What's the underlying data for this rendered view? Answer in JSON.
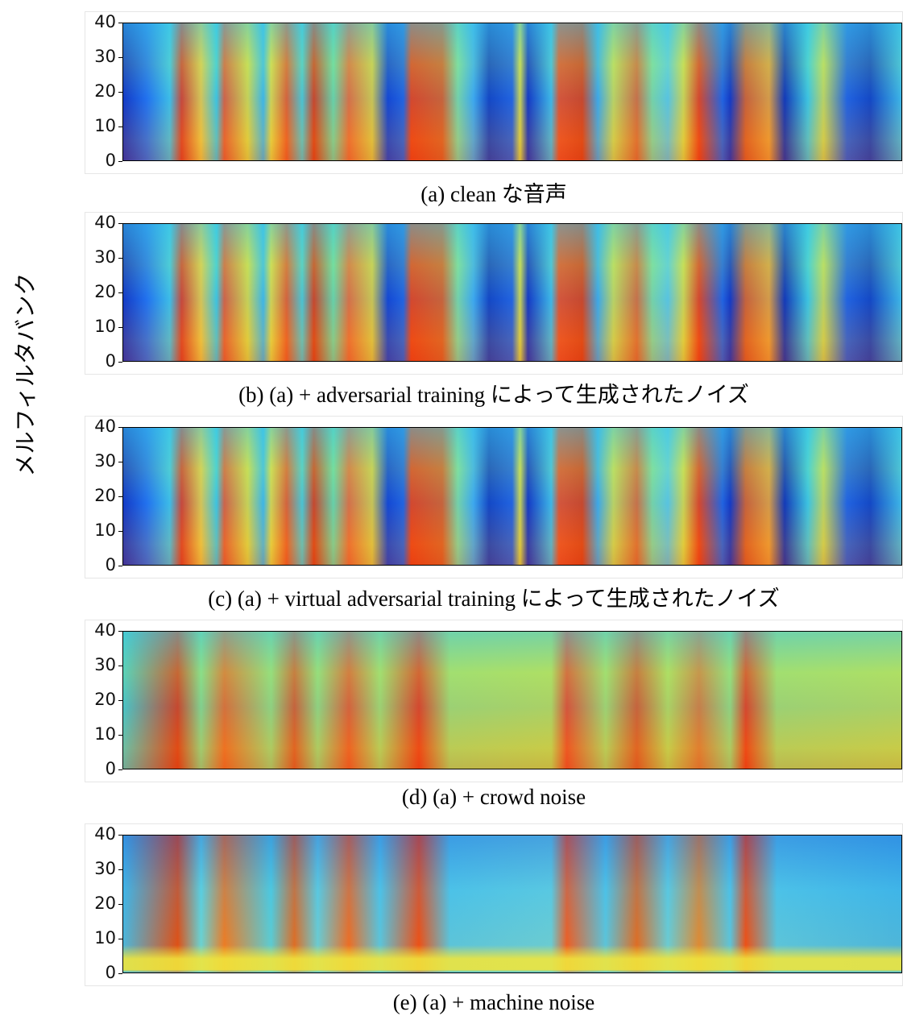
{
  "ylabel": "メルフィルタバンク",
  "chart_data": [
    {
      "type": "heatmap",
      "caption": "(a) clean な音声",
      "ylim": [
        0,
        40
      ],
      "yticks": [
        0,
        10,
        20,
        30,
        40
      ]
    },
    {
      "type": "heatmap",
      "caption": "(b) (a) + adversarial training によって生成されたノイズ",
      "ylim": [
        0,
        40
      ],
      "yticks": [
        0,
        10,
        20,
        30,
        40
      ]
    },
    {
      "type": "heatmap",
      "caption": "(c) (a) + virtual adversarial training によって生成されたノイズ",
      "ylim": [
        0,
        40
      ],
      "yticks": [
        0,
        10,
        20,
        30,
        40
      ]
    },
    {
      "type": "heatmap",
      "caption": "(d) (a) + crowd noise",
      "ylim": [
        0,
        40
      ],
      "yticks": [
        0,
        10,
        20,
        30,
        40
      ]
    },
    {
      "type": "heatmap",
      "caption": "(e) (a) + machine noise",
      "ylim": [
        0,
        40
      ],
      "yticks": [
        0,
        10,
        20,
        30,
        40
      ]
    }
  ]
}
